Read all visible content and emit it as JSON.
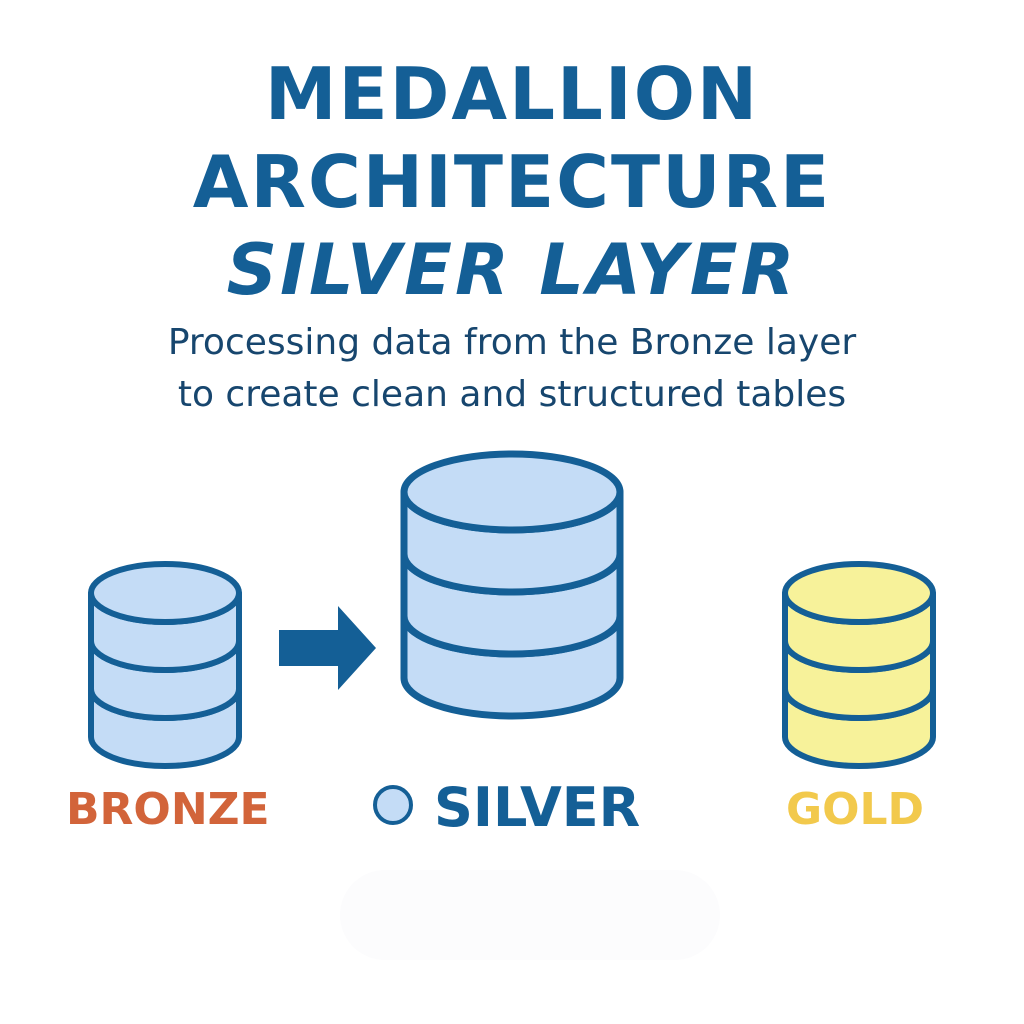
{
  "title": {
    "line1": "MEDALLION",
    "line2": "ARCHITECTURE",
    "line3": "SILVER LAYER"
  },
  "subtitle": {
    "line1": "Processing data from the Bronze layer",
    "line2": "to create clean and structured tables"
  },
  "layers": {
    "bronze": {
      "label": "BRONZE",
      "label_color": "#d2643a",
      "fill": "#c4dcf6",
      "stroke": "#145f96"
    },
    "silver": {
      "label": "SILVER",
      "label_color": "#145f96",
      "fill": "#c4dcf6",
      "stroke": "#145f96"
    },
    "gold": {
      "label": "GOLD",
      "label_color": "#f2c94c",
      "fill": "#f7f29a",
      "stroke": "#145f96"
    }
  },
  "arrow": {
    "from": "bronze",
    "to": "silver",
    "color": "#145f96",
    "icon": "arrow-right-icon"
  },
  "colors": {
    "title": "#145f96",
    "subtitle": "#17466e"
  }
}
